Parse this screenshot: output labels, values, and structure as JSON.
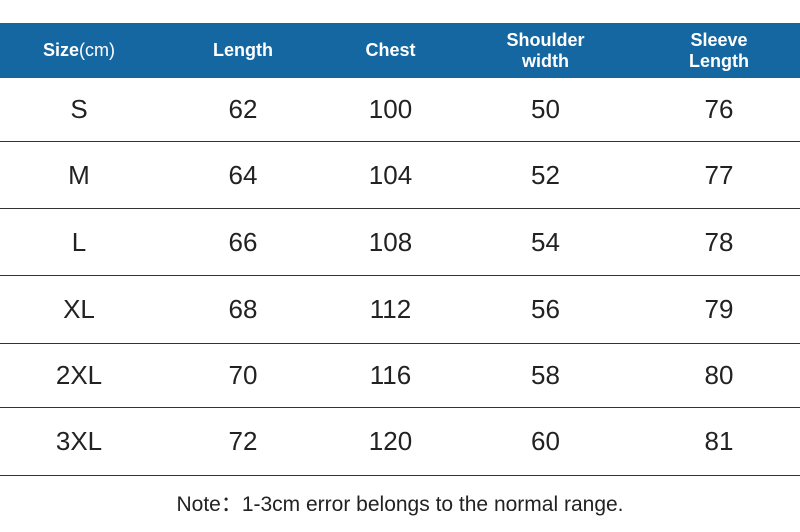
{
  "table": {
    "headers": [
      {
        "label": "Size",
        "unit": "(cm)"
      },
      {
        "label": "Length",
        "unit": ""
      },
      {
        "label": "Chest",
        "unit": ""
      },
      {
        "label": "Shoulder\nwidth",
        "unit": ""
      },
      {
        "label": "Sleeve\nLength",
        "unit": ""
      }
    ],
    "rows": [
      [
        "S",
        "62",
        "100",
        "50",
        "76"
      ],
      [
        "M",
        "64",
        "104",
        "52",
        "77"
      ],
      [
        "L",
        "66",
        "108",
        "54",
        "78"
      ],
      [
        "XL",
        "68",
        "112",
        "56",
        "79"
      ],
      [
        "2XL",
        "70",
        "116",
        "58",
        "80"
      ],
      [
        "3XL",
        "72",
        "120",
        "60",
        "81"
      ]
    ]
  },
  "note": "Note：1-3cm error belongs to the normal range.",
  "colors": {
    "header_bg": "#1467a0",
    "header_text": "#ffffff",
    "row_divider": "#333333"
  }
}
